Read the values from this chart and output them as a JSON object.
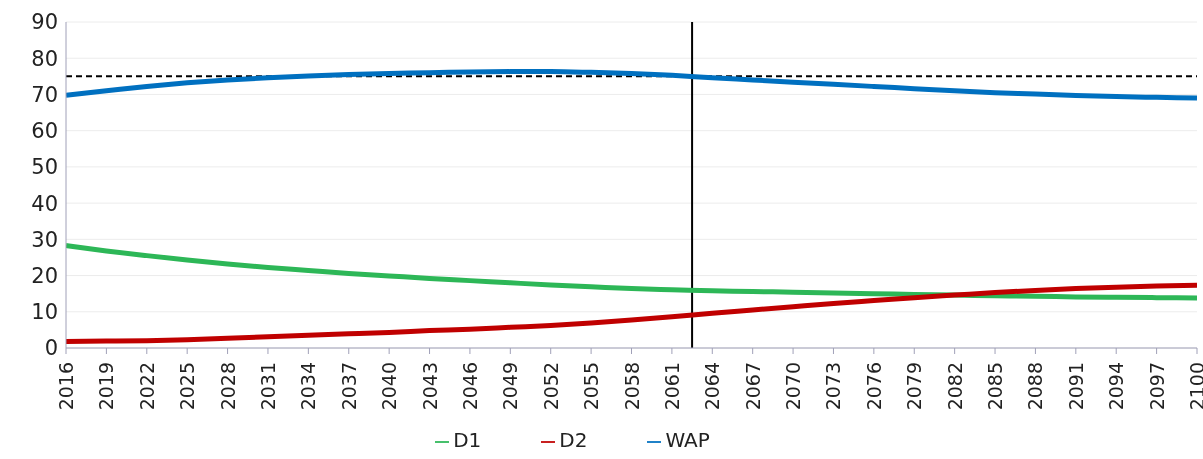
{
  "chart_data": {
    "type": "line",
    "x": [
      2016,
      2019,
      2022,
      2025,
      2028,
      2031,
      2034,
      2037,
      2040,
      2043,
      2046,
      2049,
      2052,
      2055,
      2058,
      2061,
      2064,
      2067,
      2070,
      2073,
      2076,
      2079,
      2082,
      2085,
      2088,
      2091,
      2094,
      2097,
      2100
    ],
    "series": [
      {
        "name": "D1",
        "color": "#2db757",
        "values": [
          28.3,
          26.8,
          25.5,
          24.3,
          23.2,
          22.2,
          21.4,
          20.6,
          19.9,
          19.2,
          18.6,
          18.0,
          17.4,
          16.9,
          16.4,
          16.1,
          15.8,
          15.6,
          15.4,
          15.2,
          15.0,
          14.8,
          14.6,
          14.4,
          14.3,
          14.1,
          14.0,
          13.9,
          13.8
        ]
      },
      {
        "name": "WAP",
        "color": "#0070c0",
        "values": [
          69.8,
          71.0,
          72.2,
          73.2,
          74.0,
          74.6,
          75.1,
          75.5,
          75.8,
          76.0,
          76.2,
          76.3,
          76.3,
          76.1,
          75.8,
          75.3,
          74.6,
          74.0,
          73.4,
          72.8,
          72.2,
          71.6,
          71.0,
          70.5,
          70.1,
          69.7,
          69.4,
          69.2,
          69.0
        ]
      },
      {
        "name": "D2",
        "color": "#c00000",
        "values": [
          1.8,
          1.9,
          2.0,
          2.3,
          2.7,
          3.1,
          3.5,
          3.9,
          4.3,
          4.8,
          5.2,
          5.7,
          6.2,
          6.9,
          7.7,
          8.6,
          9.6,
          10.5,
          11.4,
          12.3,
          13.1,
          13.9,
          14.6,
          15.3,
          15.9,
          16.4,
          16.8,
          17.1,
          17.3
        ]
      }
    ],
    "xlim": [
      2016,
      2100
    ],
    "xticks": [
      2016,
      2019,
      2022,
      2025,
      2028,
      2031,
      2034,
      2037,
      2040,
      2043,
      2046,
      2049,
      2052,
      2055,
      2058,
      2061,
      2064,
      2067,
      2070,
      2073,
      2076,
      2079,
      2082,
      2085,
      2088,
      2091,
      2094,
      2097,
      2100
    ],
    "ylim": [
      0,
      90
    ],
    "yticks": [
      0,
      10,
      20,
      30,
      40,
      50,
      60,
      70,
      80,
      90
    ],
    "ref_lines": [
      {
        "axis": "y",
        "value": 75,
        "color": "#000000",
        "line_style": "dashed"
      },
      {
        "axis": "x",
        "value": 2062.5,
        "color": "#000000",
        "line_style": "solid"
      }
    ],
    "grid": "y",
    "legend": "bottom",
    "marker": "none",
    "line_style": "solid"
  }
}
